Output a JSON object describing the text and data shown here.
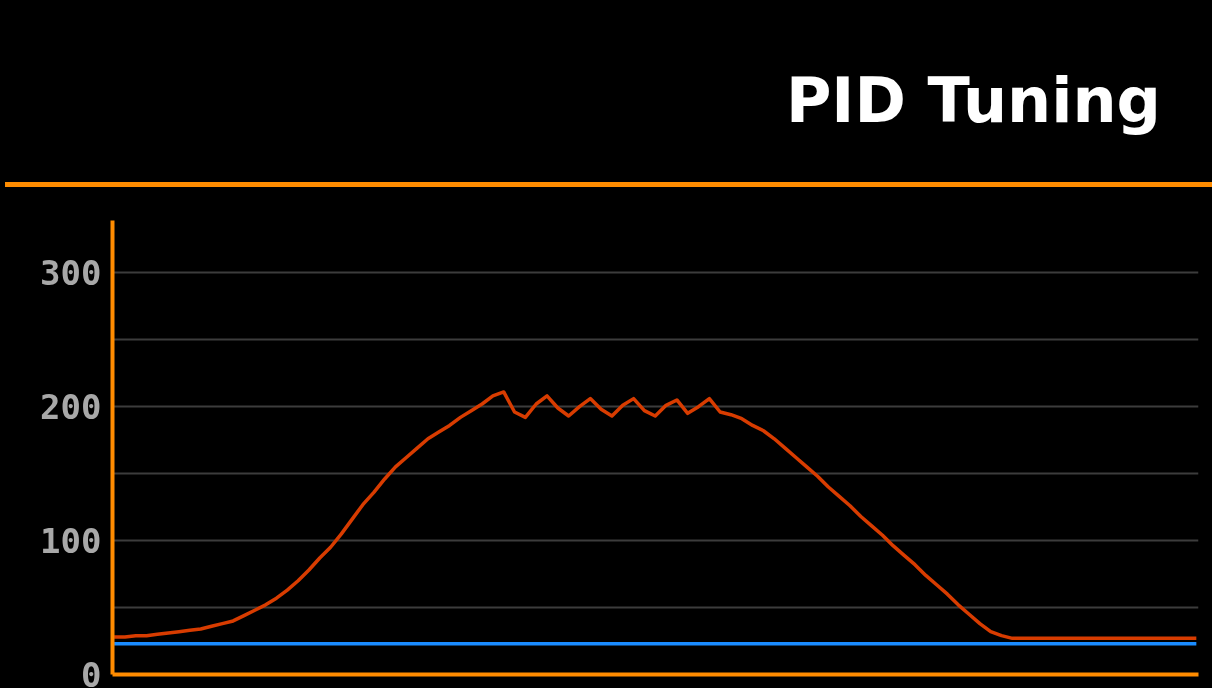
{
  "chart_data": {
    "type": "line",
    "title": "PID Tuning",
    "categories": [
      null,
      null,
      null,
      null,
      null,
      null,
      null,
      null,
      null,
      null,
      null,
      null,
      null,
      null,
      null,
      null,
      null,
      null,
      null,
      null,
      null,
      null,
      null,
      null,
      null,
      null,
      null,
      null,
      null,
      null,
      null,
      null,
      null,
      null,
      null,
      null,
      null,
      null,
      null,
      null,
      null,
      null,
      null,
      null,
      null,
      null,
      null,
      null,
      null,
      null,
      null,
      null,
      null,
      null,
      null,
      null,
      null,
      null,
      null,
      null,
      null,
      null,
      null,
      null,
      null,
      null,
      null,
      null,
      null,
      null,
      null,
      null,
      null,
      null,
      null,
      null,
      null,
      null,
      null,
      null,
      null,
      null,
      null,
      null,
      null,
      null,
      null,
      null,
      null,
      null,
      null,
      null,
      null,
      null,
      null,
      null,
      null,
      null,
      null,
      null,
      null
    ],
    "series": [
      {
        "color": "#1a8cff",
        "values": [
          23,
          23,
          23,
          23,
          23,
          23,
          23,
          23,
          23,
          23,
          23,
          23,
          23,
          23,
          23,
          23,
          23,
          23,
          23,
          23,
          23,
          23,
          23,
          23,
          23,
          23,
          23,
          23,
          23,
          23,
          23,
          23,
          23,
          23,
          23,
          23,
          23,
          23,
          23,
          23,
          23,
          23,
          23,
          23,
          23,
          23,
          23,
          23,
          23,
          23,
          23,
          23,
          23,
          23,
          23,
          23,
          23,
          23,
          23,
          23,
          23,
          23,
          23,
          23,
          23,
          23,
          23,
          23,
          23,
          23,
          23,
          23,
          23,
          23,
          23,
          23,
          23,
          23,
          23,
          23,
          23,
          23,
          23,
          23,
          23,
          23,
          23,
          23,
          23,
          23,
          23,
          23,
          23,
          23,
          23,
          23,
          23,
          23,
          23,
          23,
          23
        ]
      },
      {
        "color": "#d83c00",
        "values": [
          28,
          28,
          29,
          29,
          30,
          31,
          32,
          33,
          34,
          36,
          38,
          40,
          44,
          48,
          52,
          57,
          63,
          70,
          78,
          87,
          95,
          105,
          116,
          127,
          136,
          146,
          155,
          162,
          169,
          176,
          181,
          186,
          192,
          197,
          202,
          208,
          211,
          196,
          192,
          202,
          208,
          199,
          193,
          200,
          206,
          198,
          193,
          201,
          206,
          197,
          193,
          201,
          205,
          195,
          200,
          206,
          196,
          194,
          191,
          186,
          182,
          176,
          169,
          162,
          155,
          148,
          140,
          133,
          126,
          118,
          111,
          104,
          96,
          89,
          82,
          74,
          67,
          60,
          52,
          45,
          38,
          32,
          29,
          27,
          27,
          27,
          27,
          27,
          27,
          27,
          27,
          27,
          27,
          27,
          27,
          27,
          27,
          27,
          27,
          27,
          27
        ]
      }
    ],
    "ylim": [
      0,
      339
    ],
    "yticks": [
      0,
      {
        "value": 50,
        "label": null
      },
      100,
      {
        "value": 150,
        "label": null
      },
      200,
      {
        "value": 250,
        "label": null
      },
      300
    ],
    "grid": "y",
    "tick_labels": "y",
    "marker": "none",
    "line_style": "solid"
  }
}
